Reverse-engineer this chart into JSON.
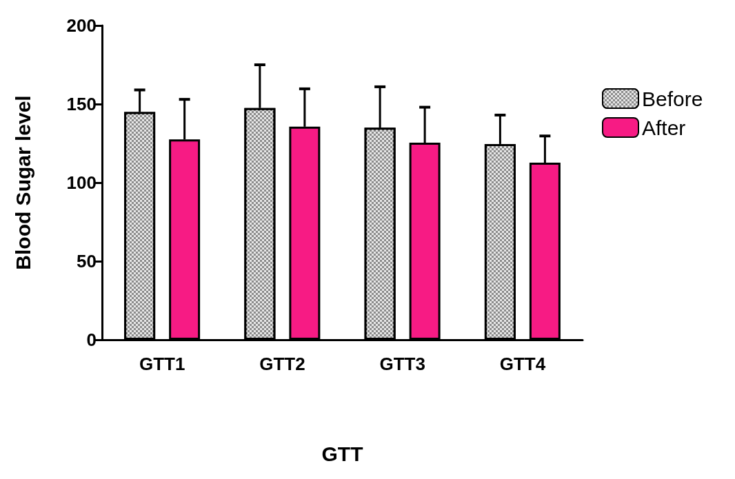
{
  "chart_data": {
    "type": "bar",
    "xlabel": "GTT",
    "ylabel": "Blood Sugar level",
    "categories": [
      "GTT1",
      "GTT2",
      "GTT3",
      "GTT4"
    ],
    "series": [
      {
        "name": "Before",
        "color": "#8c8c8c",
        "values": [
          145,
          147.5,
          135,
          124.6
        ],
        "errors": [
          [
            145,
            159
          ],
          [
            147.5,
            175
          ],
          [
            135,
            161
          ],
          [
            124.6,
            143
          ]
        ]
      },
      {
        "name": "After",
        "color": "#f71b84",
        "values": [
          127.5,
          135.6,
          125.4,
          112.7
        ],
        "errors": [
          [
            127.5,
            153
          ],
          [
            135.6,
            159.7
          ],
          [
            125.4,
            148
          ],
          [
            112.7,
            129.7
          ]
        ]
      }
    ],
    "ylim": [
      0,
      200
    ],
    "yticks": [
      0,
      50,
      100,
      150,
      200
    ],
    "grid": false,
    "legend": "top right"
  }
}
